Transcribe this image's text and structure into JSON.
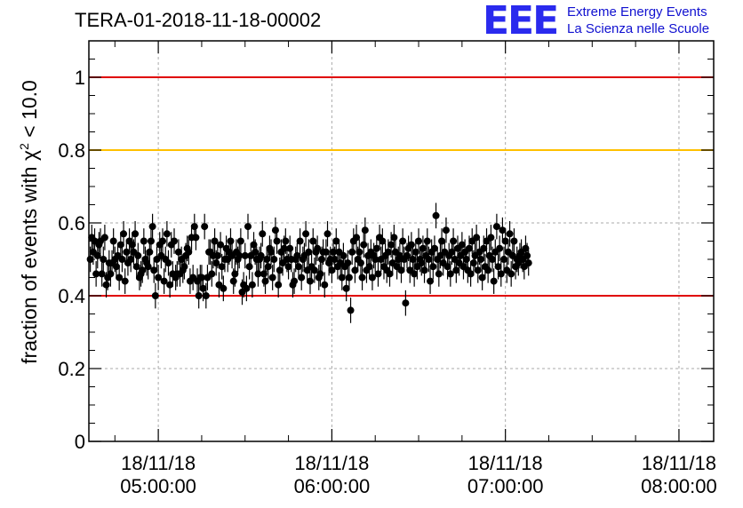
{
  "chart_data": {
    "type": "scatter",
    "title": "TERA-01-2018-11-18-00002",
    "ylabel_prefix": "fraction of events with ",
    "ylabel_symbol": "χ",
    "ylabel_superscript": "2",
    "ylabel_suffix": " < 10.0",
    "xlabel": "",
    "ylim": [
      0,
      1.1
    ],
    "yticks": [
      0,
      0.2,
      0.4,
      0.6,
      0.8,
      1
    ],
    "ytick_labels": [
      "0",
      "0.2",
      "0.4",
      "0.6",
      "0.8",
      "1"
    ],
    "xlim": [
      "2018-11-18 04:36:00",
      "2018-11-18 08:12:00"
    ],
    "xticks": [
      {
        "time": "2018-11-18 05:00:00",
        "date": "18/11/18",
        "clock": "05:00:00"
      },
      {
        "time": "2018-11-18 06:00:00",
        "date": "18/11/18",
        "clock": "06:00:00"
      },
      {
        "time": "2018-11-18 07:00:00",
        "date": "18/11/18",
        "clock": "07:00:00"
      },
      {
        "time": "2018-11-18 08:00:00",
        "date": "18/11/18",
        "clock": "08:00:00"
      }
    ],
    "grid": true,
    "reference_lines": [
      {
        "y": 1.0,
        "color": "#e00000"
      },
      {
        "y": 0.8,
        "color": "#ffc000"
      },
      {
        "y": 0.4,
        "color": "#e00000"
      }
    ],
    "series": [
      {
        "color": "#000000",
        "x_start": "2018-11-18 04:36:30",
        "x_step_seconds": 30,
        "error": 0.035,
        "y": [
          0.5,
          0.56,
          0.52,
          0.55,
          0.46,
          0.51,
          0.54,
          0.55,
          0.46,
          0.5,
          0.56,
          0.43,
          0.45,
          0.49,
          0.46,
          0.49,
          0.55,
          0.5,
          0.48,
          0.51,
          0.45,
          0.54,
          0.5,
          0.57,
          0.44,
          0.52,
          0.49,
          0.55,
          0.5,
          0.54,
          0.52,
          0.57,
          0.48,
          0.51,
          0.45,
          0.46,
          0.47,
          0.55,
          0.5,
          0.49,
          0.48,
          0.52,
          0.55,
          0.59,
          0.47,
          0.4,
          0.5,
          0.45,
          0.54,
          0.51,
          0.55,
          0.44,
          0.5,
          0.57,
          0.49,
          0.43,
          0.54,
          0.46,
          0.55,
          0.45,
          0.46,
          0.52,
          0.46,
          0.5,
          0.47,
          0.48,
          0.51,
          0.53,
          0.52,
          0.44,
          0.56,
          0.45,
          0.59,
          0.56,
          0.44,
          0.4,
          0.45,
          0.45,
          0.42,
          0.59,
          0.4,
          0.45,
          0.52,
          0.52,
          0.46,
          0.51,
          0.55,
          0.49,
          0.51,
          0.43,
          0.54,
          0.48,
          0.42,
          0.5,
          0.53,
          0.5,
          0.52,
          0.55,
          0.51,
          0.44,
          0.46,
          0.52,
          0.5,
          0.51,
          0.55,
          0.41,
          0.43,
          0.51,
          0.42,
          0.59,
          0.48,
          0.51,
          0.43,
          0.54,
          0.52,
          0.5,
          0.46,
          0.5,
          0.51,
          0.57,
          0.46,
          0.44,
          0.5,
          0.48,
          0.53,
          0.52,
          0.45,
          0.5,
          0.58,
          0.55,
          0.43,
          0.47,
          0.52,
          0.49,
          0.53,
          0.55,
          0.5,
          0.48,
          0.53,
          0.5,
          0.43,
          0.44,
          0.5,
          0.51,
          0.48,
          0.55,
          0.45,
          0.5,
          0.51,
          0.57,
          0.47,
          0.52,
          0.44,
          0.48,
          0.55,
          0.47,
          0.52,
          0.53,
          0.45,
          0.46,
          0.5,
          0.52,
          0.43,
          0.52,
          0.57,
          0.49,
          0.5,
          0.47,
          0.52,
          0.5,
          0.55,
          0.48,
          0.52,
          0.49,
          0.45,
          0.51,
          0.48,
          0.42,
          0.49,
          0.45,
          0.36,
          0.52,
          0.55,
          0.47,
          0.56,
          0.5,
          0.52,
          0.49,
          0.45,
          0.54,
          0.58,
          0.47,
          0.51,
          0.48,
          0.52,
          0.45,
          0.51,
          0.5,
          0.53,
          0.46,
          0.56,
          0.5,
          0.55,
          0.48,
          0.51,
          0.47,
          0.52,
          0.46,
          0.54,
          0.49,
          0.56,
          0.52,
          0.48,
          0.5,
          0.51,
          0.47,
          0.55,
          0.5,
          0.38,
          0.51,
          0.53,
          0.47,
          0.54,
          0.5,
          0.46,
          0.52,
          0.48,
          0.55,
          0.5,
          0.49,
          0.53,
          0.47,
          0.51,
          0.55,
          0.5,
          0.44,
          0.52,
          0.48,
          0.53,
          0.62,
          0.5,
          0.46,
          0.51,
          0.55,
          0.49,
          0.52,
          0.58,
          0.48,
          0.51,
          0.46,
          0.52,
          0.55,
          0.5,
          0.47,
          0.53,
          0.49,
          0.51,
          0.54,
          0.48,
          0.52,
          0.5,
          0.47,
          0.53,
          0.46,
          0.55,
          0.49,
          0.51,
          0.56,
          0.47,
          0.52,
          0.5,
          0.45,
          0.53,
          0.48,
          0.55,
          0.47,
          0.51,
          0.56,
          0.5,
          0.44,
          0.52,
          0.59,
          0.48,
          0.53,
          0.46,
          0.58,
          0.5,
          0.55,
          0.47,
          0.52,
          0.57,
          0.46,
          0.51,
          0.55,
          0.48,
          0.5,
          0.49,
          0.51,
          0.52,
          0.5,
          0.48,
          0.53,
          0.51,
          0.49
        ]
      }
    ]
  },
  "logo": {
    "mark": "EEE",
    "line1": "Extreme Energy Events",
    "line2": "La Scienza nelle Scuole",
    "color": "#2a2aee"
  }
}
